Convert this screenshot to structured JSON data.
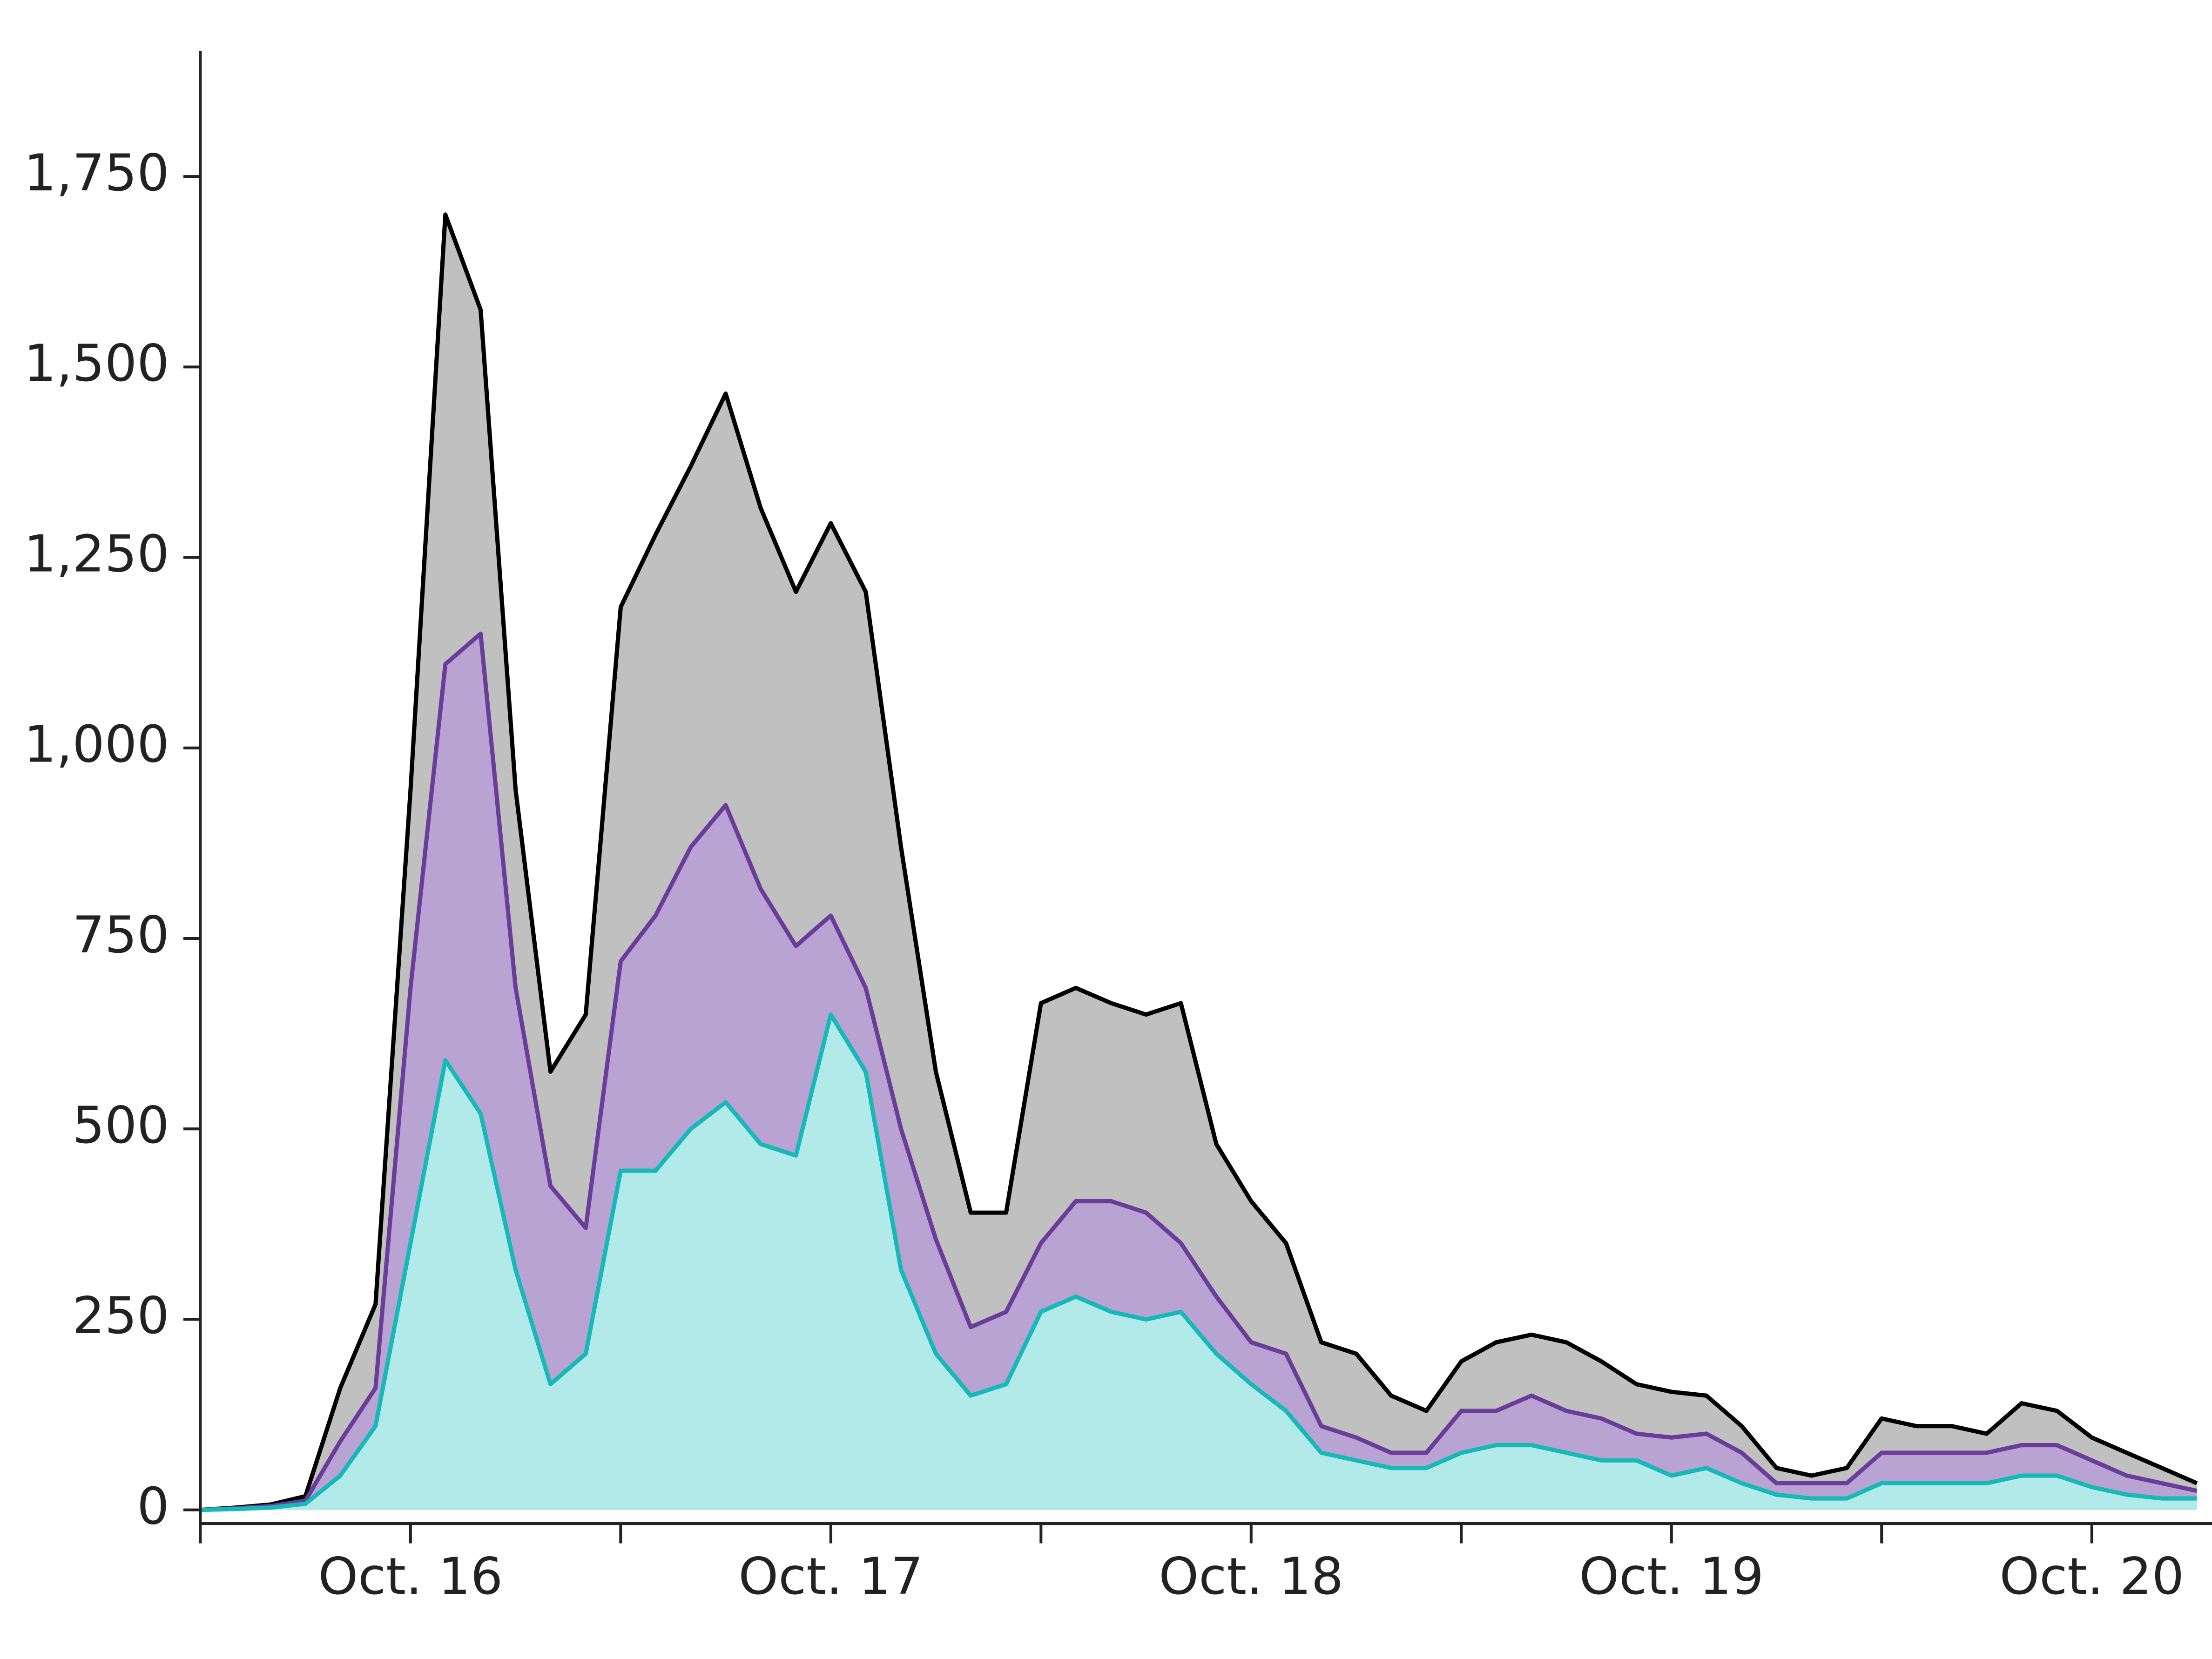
{
  "chart_data": {
    "type": "area",
    "x": [
      15.5,
      15.583,
      15.667,
      15.75,
      15.833,
      15.917,
      16.0,
      16.083,
      16.167,
      16.25,
      16.333,
      16.417,
      16.5,
      16.583,
      16.667,
      16.75,
      16.833,
      16.917,
      17.0,
      17.083,
      17.167,
      17.25,
      17.333,
      17.417,
      17.5,
      17.583,
      17.667,
      17.75,
      17.833,
      17.917,
      18.0,
      18.083,
      18.167,
      18.25,
      18.333,
      18.417,
      18.5,
      18.583,
      18.667,
      18.75,
      18.833,
      18.917,
      19.0,
      19.083,
      19.167,
      19.25,
      19.333,
      19.417,
      19.5,
      19.583,
      19.667,
      19.75,
      19.833,
      19.917,
      20.0,
      20.083,
      20.167,
      20.25
    ],
    "series": [
      {
        "color": "#000000",
        "fill_color": "#c0c0c0",
        "values": [
          0,
          3,
          7,
          18,
          160,
          270,
          945,
          1700,
          1575,
          945,
          575,
          650,
          1185,
          1280,
          1370,
          1465,
          1315,
          1205,
          1295,
          1205,
          870,
          575,
          390,
          390,
          665,
          685,
          665,
          650,
          665,
          480,
          405,
          350,
          220,
          205,
          150,
          130,
          195,
          220,
          230,
          220,
          195,
          165,
          155,
          150,
          110,
          55,
          45,
          55,
          120,
          110,
          110,
          100,
          140,
          130,
          95,
          75,
          55,
          35
        ]
      },
      {
        "color": "#6a3d9a",
        "fill_color": "#b9a3d3",
        "values": [
          0,
          2,
          5,
          12,
          90,
          160,
          685,
          1110,
          1150,
          685,
          425,
          370,
          720,
          780,
          870,
          925,
          815,
          740,
          780,
          685,
          500,
          355,
          240,
          260,
          350,
          405,
          405,
          390,
          350,
          280,
          220,
          205,
          110,
          95,
          75,
          75,
          130,
          130,
          150,
          130,
          120,
          100,
          95,
          100,
          75,
          35,
          35,
          35,
          75,
          75,
          75,
          75,
          85,
          85,
          65,
          45,
          35,
          25
        ]
      },
      {
        "color": "#17b8b8",
        "fill_color": "#b2eaea",
        "values": [
          0,
          1,
          3,
          8,
          45,
          110,
          350,
          590,
          520,
          315,
          165,
          205,
          445,
          445,
          500,
          535,
          480,
          465,
          650,
          575,
          315,
          205,
          150,
          165,
          260,
          280,
          260,
          250,
          260,
          205,
          165,
          130,
          75,
          65,
          55,
          55,
          75,
          85,
          85,
          75,
          65,
          65,
          45,
          55,
          35,
          20,
          15,
          15,
          35,
          35,
          35,
          35,
          45,
          45,
          30,
          20,
          15,
          15
        ]
      }
    ],
    "xlim": [
      15.5,
      20.286
    ],
    "xticks": [
      {
        "value": 16,
        "label": "Oct. 16"
      },
      {
        "value": 17,
        "label": "Oct. 17"
      },
      {
        "value": 18,
        "label": "Oct. 18"
      },
      {
        "value": 19,
        "label": "Oct. 19"
      },
      {
        "value": 20,
        "label": "Oct. 20"
      }
    ],
    "xminor_ticks": [
      15.5,
      16.5,
      17.5,
      18.5,
      19.5
    ],
    "ylim": [
      -18,
      1915
    ],
    "yticks": [
      0,
      {
        "value": 250,
        "label": "250"
      },
      500,
      750,
      {
        "value": 1000,
        "label": "1,000"
      },
      {
        "value": 1250,
        "label": "1,250"
      },
      {
        "value": 1500,
        "label": "1,500"
      },
      {
        "value": 1750,
        "label": "1,750"
      }
    ]
  }
}
